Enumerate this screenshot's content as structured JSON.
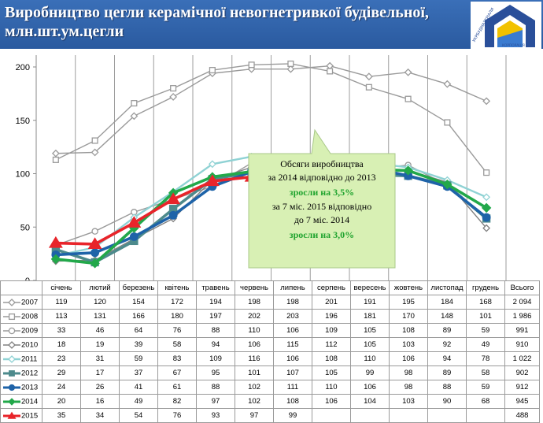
{
  "header": {
    "title": "Виробництво цегли керамічної невогнетривкої будівельної, млн.шт.ум.цегли",
    "logo_text_top": "УКРБУДМАТЕРІАЛИ",
    "logo_text_bottom": "КОРПОРАЦІЯ"
  },
  "annotation": {
    "line1": "Обсяги виробництва",
    "line2": "за 2014 відповідно до 2013",
    "line3": "зросли на 3,5%",
    "line4": "за 7 міс. 2015  відповідно",
    "line5": "до 7 міс. 2014",
    "line6": "зросли на 3,0%"
  },
  "chart_data": {
    "type": "line",
    "title": "Виробництво цегли керамічної невогнетривкої будівельної, млн.шт.ум.цегли",
    "xlabel": "",
    "ylabel": "",
    "ylim": [
      0,
      200
    ],
    "yticks": [
      "0",
      "50",
      "100",
      "150",
      "200"
    ],
    "grid": "vertical",
    "legend": "table-below",
    "categories": [
      "січень",
      "лютий",
      "березень",
      "квітень",
      "травень",
      "червень",
      "липень",
      "серпень",
      "вересень",
      "жовтень",
      "листопад",
      "грудень"
    ],
    "total_header": "Всього",
    "series": [
      {
        "name": "2007",
        "values": [
          119,
          120,
          154,
          172,
          194,
          198,
          198,
          201,
          191,
          195,
          184,
          168
        ],
        "total": "2 094",
        "color": "#9a9a9a",
        "marker": "diamond-open"
      },
      {
        "name": "2008",
        "values": [
          113,
          131,
          166,
          180,
          197,
          202,
          203,
          196,
          181,
          170,
          148,
          101
        ],
        "total": "1 986",
        "color": "#9a9a9a",
        "marker": "square-open"
      },
      {
        "name": "2009",
        "values": [
          33,
          46,
          64,
          76,
          88,
          110,
          106,
          109,
          105,
          108,
          89,
          59
        ],
        "total": "991",
        "color": "#9a9a9a",
        "marker": "circle-open"
      },
      {
        "name": "2010",
        "values": [
          18,
          19,
          39,
          58,
          94,
          106,
          115,
          112,
          105,
          103,
          92,
          49
        ],
        "total": "910",
        "color": "#808080",
        "marker": "diamond-open"
      },
      {
        "name": "2011",
        "values": [
          23,
          31,
          59,
          83,
          109,
          116,
          106,
          108,
          110,
          106,
          94,
          78
        ],
        "total": "1 022",
        "color": "#8fd2d4",
        "marker": "diamond-open"
      },
      {
        "name": "2012",
        "values": [
          29,
          17,
          37,
          67,
          95,
          101,
          107,
          105,
          99,
          98,
          89,
          58
        ],
        "total": "902",
        "color": "#4d8a8c",
        "marker": "square"
      },
      {
        "name": "2013",
        "values": [
          24,
          26,
          41,
          61,
          88,
          102,
          111,
          110,
          106,
          98,
          88,
          59
        ],
        "total": "912",
        "color": "#1e63a8",
        "marker": "circle"
      },
      {
        "name": "2014",
        "values": [
          20,
          16,
          49,
          82,
          97,
          102,
          108,
          106,
          104,
          103,
          90,
          68
        ],
        "total": "945",
        "color": "#22a84a",
        "marker": "diamond"
      },
      {
        "name": "2015",
        "values": [
          35,
          34,
          54,
          76,
          93,
          97,
          99,
          null,
          null,
          null,
          null,
          null
        ],
        "total": "488",
        "color": "#e8242a",
        "marker": "triangle"
      }
    ]
  }
}
